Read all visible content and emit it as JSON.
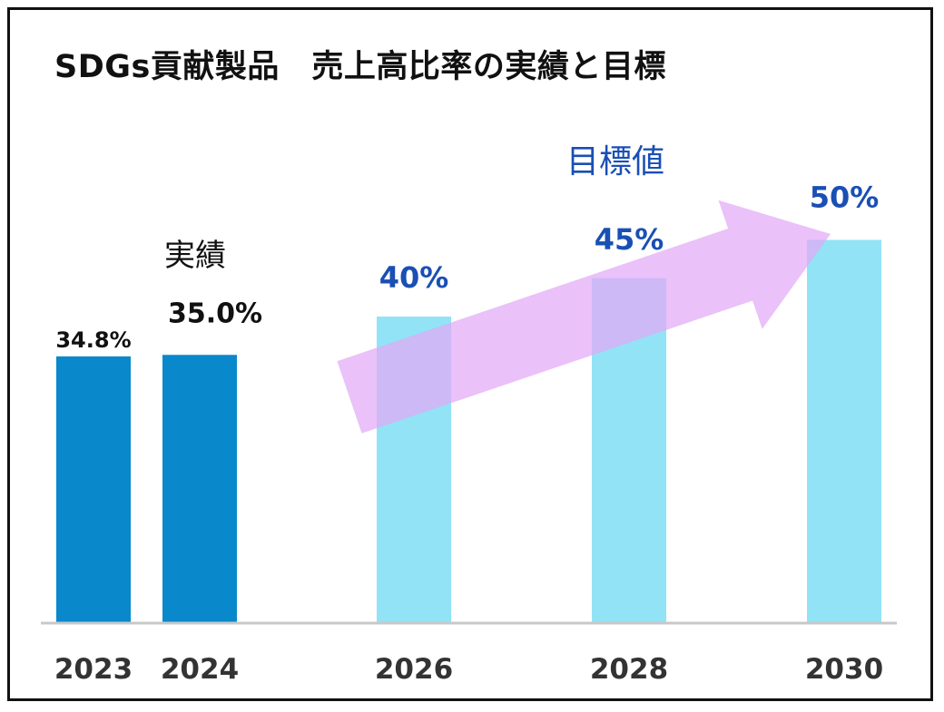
{
  "chart_data": {
    "type": "bar",
    "title": "SDGs貢献製品　売上高比率の実績と目標",
    "categories": [
      "2023",
      "2024",
      "2026",
      "2028",
      "2030"
    ],
    "values": [
      34.8,
      35.0,
      40,
      45,
      50
    ],
    "value_labels": [
      "34.8%",
      "35.0%",
      "40%",
      "45%",
      "50%"
    ],
    "bar_kinds": [
      "actual",
      "actual",
      "target",
      "target",
      "target"
    ],
    "annotations": {
      "actual": "実績",
      "target": "目標値"
    },
    "colors": {
      "actual": "#0a88cc",
      "target": "#92e3f6",
      "target_text": "#1a4fb4",
      "arrow": "#e2a9f5",
      "axis": "#c8c8c8"
    }
  }
}
